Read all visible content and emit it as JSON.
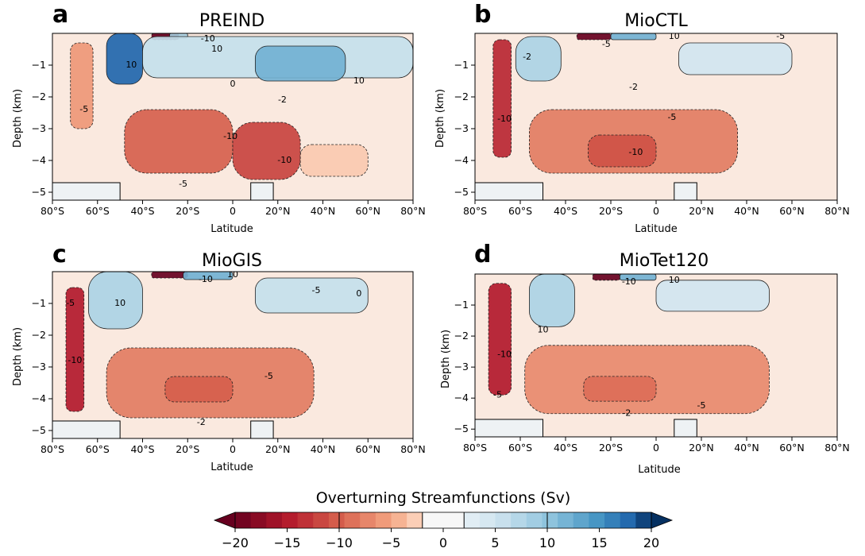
{
  "chart_data": [
    {
      "type": "heatmap",
      "letter": "a",
      "title": "PREIND",
      "xlabel": "Latitude",
      "ylabel": "Depth (km)",
      "xlim": [
        -80,
        80
      ],
      "ylim": [
        -5.25,
        0
      ],
      "x_ticks": [
        -80,
        -60,
        -40,
        -20,
        0,
        20,
        40,
        60,
        80
      ],
      "x_tick_labels": [
        "80°S",
        "60°S",
        "40°S",
        "20°S",
        "0",
        "20°N",
        "40°N",
        "60°N",
        "80°N"
      ],
      "y_ticks": [
        -1,
        -2,
        -3,
        -4,
        -5
      ],
      "y_tick_labels": [
        "−1",
        "−2",
        "−3",
        "−4",
        "−5"
      ],
      "cells": [
        {
          "lat": [
            -72,
            -62
          ],
          "depth": [
            -0.3,
            -3.0
          ],
          "value": -6
        },
        {
          "lat": [
            -56,
            -40
          ],
          "depth": [
            0,
            -1.6
          ],
          "value": 18
        },
        {
          "lat": [
            -36,
            -24
          ],
          "depth": [
            0,
            -0.2
          ],
          "value": -20
        },
        {
          "lat": [
            -28,
            -20
          ],
          "depth": [
            0,
            -0.15
          ],
          "value": 8
        },
        {
          "lat": [
            -40,
            80
          ],
          "depth": [
            -0.1,
            -1.4
          ],
          "value": 6
        },
        {
          "lat": [
            10,
            50
          ],
          "depth": [
            -0.4,
            -1.5
          ],
          "value": 12
        },
        {
          "lat": [
            -48,
            0
          ],
          "depth": [
            -2.4,
            -4.4
          ],
          "value": -10
        },
        {
          "lat": [
            0,
            30
          ],
          "depth": [
            -2.8,
            -4.6
          ],
          "value": -12
        },
        {
          "lat": [
            30,
            60
          ],
          "depth": [
            -3.5,
            -4.5
          ],
          "value": -3
        }
      ],
      "contour_labels": [
        {
          "text": "10",
          "lat": -45,
          "depth": -1.0
        },
        {
          "text": "10",
          "lat": -7,
          "depth": -0.5
        },
        {
          "text": "10",
          "lat": 56,
          "depth": -1.5
        },
        {
          "text": "-10",
          "lat": -11,
          "depth": -0.18
        },
        {
          "text": "-5",
          "lat": -66,
          "depth": -2.4
        },
        {
          "text": "0",
          "lat": 0,
          "depth": -1.6
        },
        {
          "text": "-2",
          "lat": 22,
          "depth": -2.1
        },
        {
          "text": "-10",
          "lat": -1,
          "depth": -3.25
        },
        {
          "text": "-10",
          "lat": 23,
          "depth": -4.0
        },
        {
          "text": "-5",
          "lat": -22,
          "depth": -4.75
        }
      ]
    },
    {
      "type": "heatmap",
      "letter": "b",
      "title": "MioCTL",
      "xlabel": "Latitude",
      "ylabel": "Depth (km)",
      "xlim": [
        -80,
        80
      ],
      "ylim": [
        -5.25,
        0
      ],
      "x_ticks": [
        -80,
        -60,
        -40,
        -20,
        0,
        20,
        40,
        60,
        80
      ],
      "x_tick_labels": [
        "80°S",
        "60°S",
        "40°S",
        "20°S",
        "0",
        "20°N",
        "40°N",
        "60°N",
        "80°N"
      ],
      "y_ticks": [
        -1,
        -2,
        -3,
        -4,
        -5
      ],
      "y_tick_labels": [
        "−1",
        "−2",
        "−3",
        "−4",
        "−5"
      ],
      "cells": [
        {
          "lat": [
            -72,
            -64
          ],
          "depth": [
            -0.2,
            -3.9
          ],
          "value": -14
        },
        {
          "lat": [
            -62,
            -42
          ],
          "depth": [
            -0.1,
            -1.5
          ],
          "value": 8
        },
        {
          "lat": [
            -35,
            -20
          ],
          "depth": [
            0,
            -0.2
          ],
          "value": -20
        },
        {
          "lat": [
            -20,
            0
          ],
          "depth": [
            0,
            -0.2
          ],
          "value": 12
        },
        {
          "lat": [
            10,
            60
          ],
          "depth": [
            -0.3,
            -1.3
          ],
          "value": 5
        },
        {
          "lat": [
            -56,
            36
          ],
          "depth": [
            -2.4,
            -4.4
          ],
          "value": -8
        },
        {
          "lat": [
            -30,
            0
          ],
          "depth": [
            -3.2,
            -4.2
          ],
          "value": -11
        }
      ],
      "contour_labels": [
        {
          "text": "-5",
          "lat": -22,
          "depth": -0.35
        },
        {
          "text": "-2",
          "lat": -57,
          "depth": -0.75
        },
        {
          "text": "10",
          "lat": 8,
          "depth": -0.1
        },
        {
          "text": "-5",
          "lat": 55,
          "depth": -0.1
        },
        {
          "text": "-2",
          "lat": -10,
          "depth": -1.7
        },
        {
          "text": "-5",
          "lat": 7,
          "depth": -2.65
        },
        {
          "text": "-10",
          "lat": -67,
          "depth": -2.7
        },
        {
          "text": "-10",
          "lat": -9,
          "depth": -3.75
        }
      ]
    },
    {
      "type": "heatmap",
      "letter": "c",
      "title": "MioGIS",
      "xlabel": "Latitude",
      "ylabel": "Depth (km)",
      "xlim": [
        -80,
        80
      ],
      "ylim": [
        -5.25,
        0
      ],
      "x_ticks": [
        -80,
        -60,
        -40,
        -20,
        0,
        20,
        40,
        60,
        80
      ],
      "x_tick_labels": [
        "80°S",
        "60°S",
        "40°S",
        "20°S",
        "0",
        "20°N",
        "40°N",
        "60°N",
        "80°N"
      ],
      "y_ticks": [
        -1,
        -2,
        -3,
        -4,
        -5
      ],
      "y_tick_labels": [
        "−1",
        "−2",
        "−3",
        "−4",
        "−5"
      ],
      "cells": [
        {
          "lat": [
            -74,
            -66
          ],
          "depth": [
            -0.5,
            -4.4
          ],
          "value": -15
        },
        {
          "lat": [
            -64,
            -40
          ],
          "depth": [
            0,
            -1.8
          ],
          "value": 8
        },
        {
          "lat": [
            -36,
            -20
          ],
          "depth": [
            0,
            -0.2
          ],
          "value": -20
        },
        {
          "lat": [
            -22,
            0
          ],
          "depth": [
            0,
            -0.25
          ],
          "value": 12
        },
        {
          "lat": [
            10,
            60
          ],
          "depth": [
            -0.2,
            -1.3
          ],
          "value": 6
        },
        {
          "lat": [
            -56,
            36
          ],
          "depth": [
            -2.4,
            -4.6
          ],
          "value": -8
        },
        {
          "lat": [
            -30,
            0
          ],
          "depth": [
            -3.3,
            -4.1
          ],
          "value": -10
        }
      ],
      "contour_labels": [
        {
          "text": "-5",
          "lat": -72,
          "depth": -1.0
        },
        {
          "text": "10",
          "lat": -50,
          "depth": -1.0
        },
        {
          "text": "-10",
          "lat": -12,
          "depth": -0.25
        },
        {
          "text": "10",
          "lat": 0,
          "depth": -0.1
        },
        {
          "text": "-5",
          "lat": 37,
          "depth": -0.6
        },
        {
          "text": "0",
          "lat": 56,
          "depth": -0.7
        },
        {
          "text": "-10",
          "lat": -70,
          "depth": -2.8
        },
        {
          "text": "-5",
          "lat": 16,
          "depth": -3.3
        },
        {
          "text": "-2",
          "lat": -14,
          "depth": -4.75
        }
      ]
    },
    {
      "type": "heatmap",
      "letter": "d",
      "title": "MioTet120",
      "xlabel": "Latitude",
      "ylabel": "Depth (km)",
      "xlim": [
        -80,
        80
      ],
      "ylim": [
        -5.25,
        0
      ],
      "x_ticks": [
        -80,
        -60,
        -40,
        -20,
        0,
        20,
        40,
        60,
        80
      ],
      "x_tick_labels": [
        "80°S",
        "60°S",
        "40°S",
        "20°S",
        "0",
        "20°N",
        "40°N",
        "60°N",
        "80°N"
      ],
      "y_ticks": [
        -1,
        -2,
        -3,
        -4,
        -5
      ],
      "y_tick_labels": [
        "−1",
        "−2",
        "−3",
        "−4",
        "−5"
      ],
      "cells": [
        {
          "lat": [
            -74,
            -64
          ],
          "depth": [
            -0.3,
            -3.9
          ],
          "value": -15
        },
        {
          "lat": [
            -56,
            -36
          ],
          "depth": [
            0,
            -1.7
          ],
          "value": 8
        },
        {
          "lat": [
            -28,
            -16
          ],
          "depth": [
            0,
            -0.2
          ],
          "value": -20
        },
        {
          "lat": [
            -16,
            0
          ],
          "depth": [
            0,
            -0.2
          ],
          "value": 12
        },
        {
          "lat": [
            0,
            50
          ],
          "depth": [
            -0.2,
            -1.2
          ],
          "value": 5
        },
        {
          "lat": [
            -58,
            50
          ],
          "depth": [
            -2.3,
            -4.5
          ],
          "value": -7
        },
        {
          "lat": [
            -32,
            0
          ],
          "depth": [
            -3.3,
            -4.1
          ],
          "value": -9
        }
      ],
      "contour_labels": [
        {
          "text": "10",
          "lat": -50,
          "depth": -1.8
        },
        {
          "text": "-10",
          "lat": -12,
          "depth": -0.25
        },
        {
          "text": "10",
          "lat": 8,
          "depth": -0.2
        },
        {
          "text": "-10",
          "lat": -67,
          "depth": -2.6
        },
        {
          "text": "-5",
          "lat": -70,
          "depth": -3.9
        },
        {
          "text": "-2",
          "lat": -13,
          "depth": -4.5
        },
        {
          "text": "-5",
          "lat": 20,
          "depth": -4.25
        }
      ]
    }
  ],
  "colorbar": {
    "title": "Overturning Streamfunctions (Sv)",
    "min": -20,
    "max": 20,
    "ticks": [
      -20,
      -15,
      -10,
      -5,
      0,
      5,
      10,
      15,
      20
    ],
    "tick_labels": [
      "−20",
      "−15",
      "−10",
      "−5",
      "0",
      "5",
      "10",
      "15",
      "20"
    ],
    "colormap": "RdBu",
    "extend": "both",
    "bounds": [
      -20,
      -18.5,
      -17,
      -15.5,
      -14,
      -12.5,
      -11,
      -9.5,
      -8,
      -6.5,
      -5,
      -3.5,
      -2,
      2,
      3.5,
      5,
      6.5,
      8,
      9.5,
      11,
      12.5,
      14,
      15.5,
      17,
      18.5,
      20
    ]
  },
  "colors": {
    "neg_extreme": "#67001f",
    "neg_mid": "#d6604d",
    "neutral": "#f7f7f7",
    "pos_mid": "#4393c3",
    "pos_extreme": "#053061",
    "bathymetry": "#eef2f4"
  }
}
